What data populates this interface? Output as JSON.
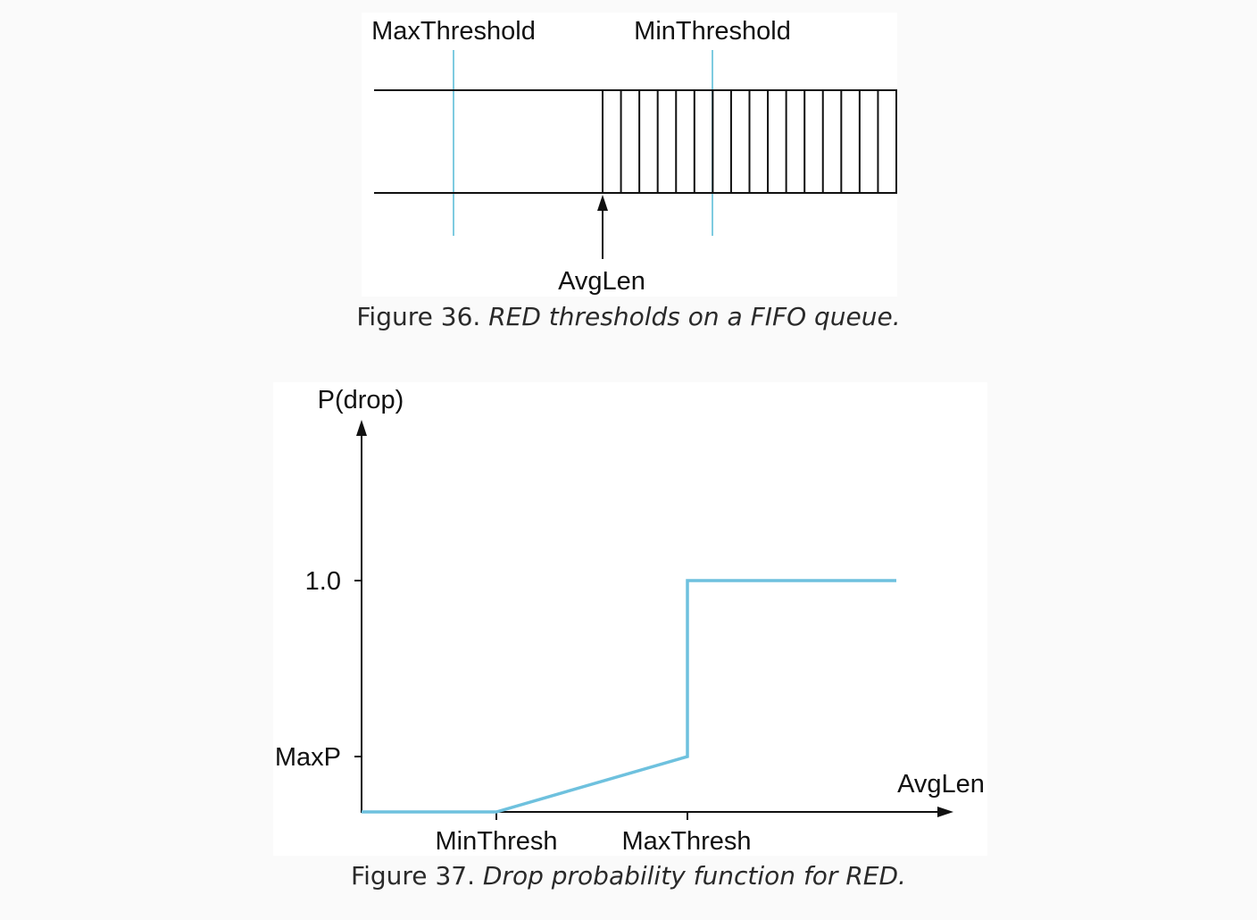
{
  "figure36": {
    "labels": {
      "max_threshold": "MaxThreshold",
      "min_threshold": "MinThreshold",
      "avg_len": "AvgLen"
    },
    "caption": {
      "prefix": "Figure 36.",
      "text": "RED thresholds on a FIFO queue."
    },
    "colors": {
      "threshold_line": "#7ecbe0",
      "outline": "#111111"
    }
  },
  "figure37": {
    "caption": {
      "prefix": "Figure 37.",
      "text": "Drop probability function for RED."
    },
    "colors": {
      "curve": "#6ec1de",
      "axis": "#111111"
    }
  },
  "chart_data": {
    "type": "line",
    "ylabel": "P(drop)",
    "xlabel": "AvgLen",
    "y_ticks": [
      "1.0",
      "MaxP"
    ],
    "x_ticks": [
      "MinThresh",
      "MaxThresh"
    ],
    "series": [
      {
        "points": [
          {
            "x": "0",
            "y": "0"
          },
          {
            "x": "MinThresh",
            "y": "0"
          },
          {
            "x": "MaxThresh",
            "y": "MaxP"
          },
          {
            "x": "MaxThresh",
            "y": "1.0"
          },
          {
            "x": "end",
            "y": "1.0"
          }
        ]
      }
    ]
  }
}
